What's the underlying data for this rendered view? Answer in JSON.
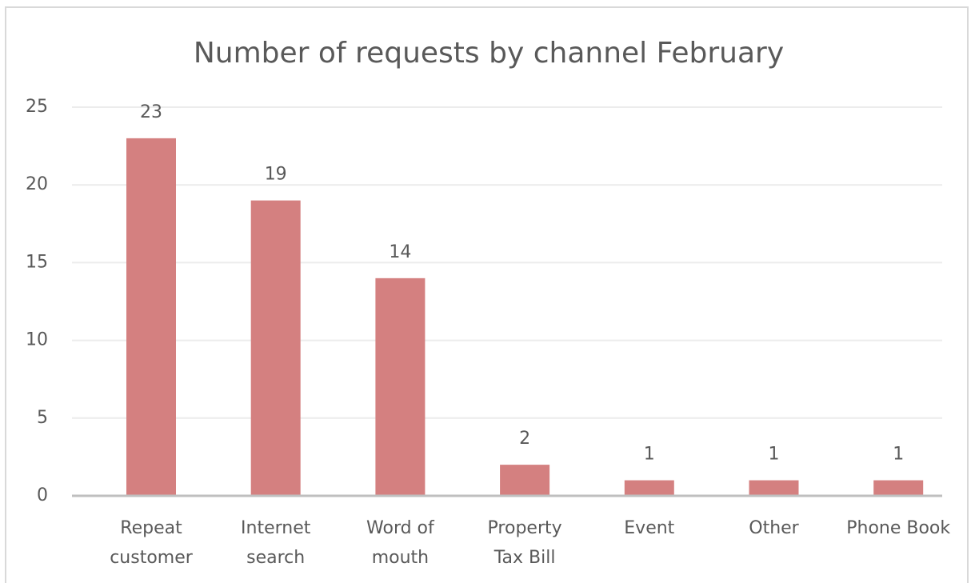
{
  "chart_data": {
    "type": "bar",
    "title": "Number of requests by channel February",
    "categories": [
      "Repeat customer",
      "Internet search",
      "Word of mouth",
      "Property Tax Bill",
      "Event",
      "Other",
      "Phone Book"
    ],
    "values": [
      23,
      19,
      14,
      2,
      1,
      1,
      1
    ],
    "color": "#d48080",
    "ylim": [
      0,
      25
    ],
    "yticks": [
      0,
      5,
      10,
      15,
      20,
      25
    ],
    "grid": true
  }
}
